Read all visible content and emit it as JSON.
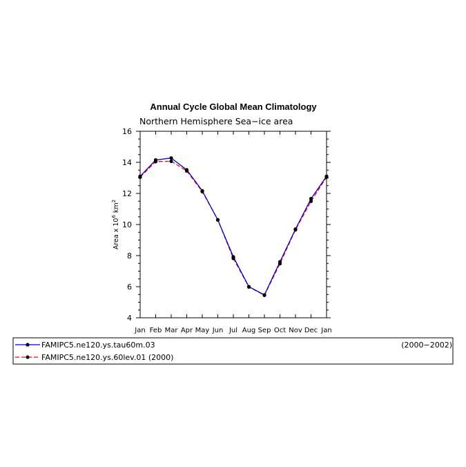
{
  "chart_data": {
    "type": "line",
    "title": "Annual Cycle Global Mean Climatology",
    "subtitle": "Northern Hemisphere Sea−ice area",
    "ylabel_prefix": "Area x 10",
    "ylabel_exp": "6",
    "ylabel_unit": "km",
    "ylabel_unit_exp": "2",
    "categories": [
      "Jan",
      "Feb",
      "Mar",
      "Apr",
      "May",
      "Jun",
      "Jul",
      "Aug",
      "Sep",
      "Oct",
      "Nov",
      "Dec",
      "Jan"
    ],
    "ylim": [
      4,
      16
    ],
    "yticks": [
      4,
      6,
      8,
      10,
      12,
      14,
      16
    ],
    "series": [
      {
        "name": "FAMIPC5.ne120.ys.tau60m.03",
        "period": "(2000−2002)",
        "color": "#0000cc",
        "dash": "solid",
        "values": [
          13.1,
          14.15,
          14.28,
          13.52,
          12.17,
          10.3,
          7.92,
          6.0,
          5.47,
          7.6,
          9.7,
          11.66,
          13.1
        ]
      },
      {
        "name": "FAMIPC5.ne120.ys.60lev.01",
        "period": "(2000)",
        "color": "#ff0000",
        "dash": "dashed",
        "values": [
          13.05,
          14.05,
          14.07,
          13.45,
          12.12,
          10.3,
          7.82,
          5.98,
          5.45,
          7.48,
          9.66,
          11.5,
          13.05
        ]
      }
    ]
  }
}
